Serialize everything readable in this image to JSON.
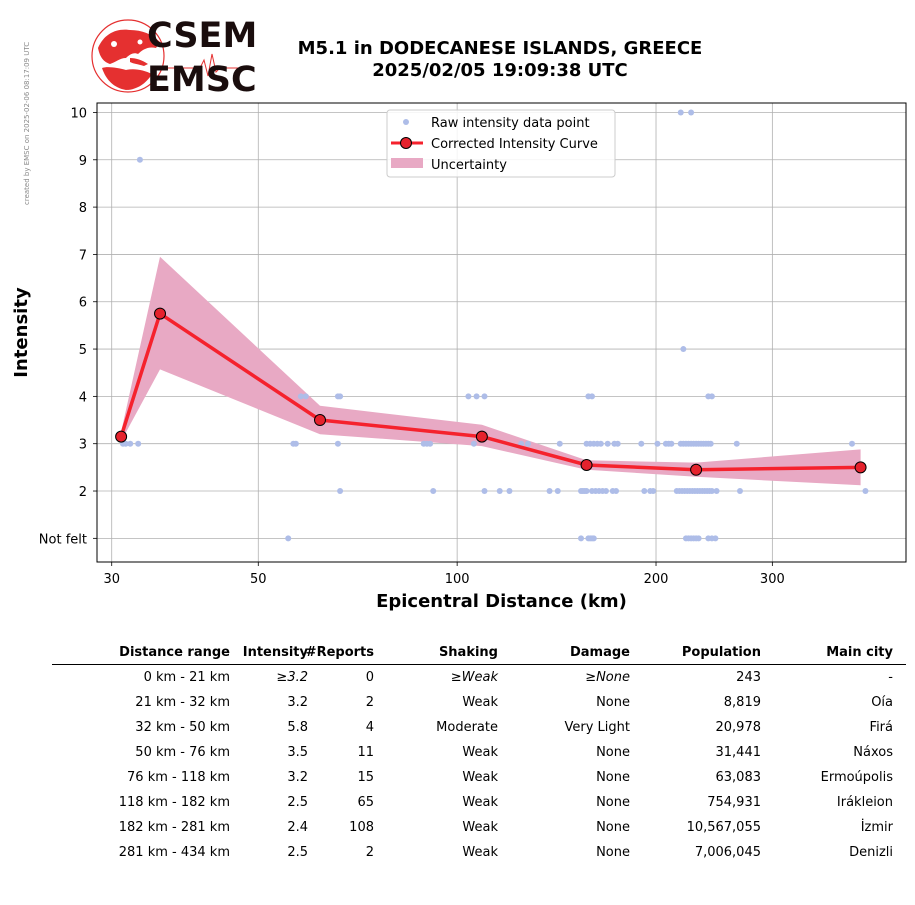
{
  "credit": "created by EMSC on 2025-02-06 08:17:09 UTC",
  "logo": {
    "top_word": "CSEM",
    "bottom_word": "EMSC"
  },
  "title": {
    "line1": "M5.1 in DODECANESE ISLANDS, GREECE",
    "line2": "2025/02/05 19:09:38 UTC"
  },
  "chart_data": {
    "type": "scatter",
    "xlabel": "Epicentral Distance (km)",
    "ylabel": "Intensity",
    "x_scale": "log",
    "xlim": [
      28.5,
      478
    ],
    "ylim": [
      0.5,
      10.2
    ],
    "x_ticks": [
      30,
      50,
      100,
      200,
      300
    ],
    "y_ticks": [
      1,
      2,
      3,
      4,
      5,
      6,
      7,
      8,
      9,
      10
    ],
    "y_tick_labels": [
      "Not felt",
      "2",
      "3",
      "4",
      "5",
      "6",
      "7",
      "8",
      "9",
      "10"
    ],
    "grid": true,
    "legend_position": "top-center",
    "colors": {
      "raw": "#aebde8",
      "curve": "#f5222d",
      "marker": "#e5222d",
      "uncertainty": "#e8a9c4"
    },
    "series": [
      {
        "name": "Raw intensity data point",
        "kind": "points",
        "points": [
          [
            31.2,
            3
          ],
          [
            31.5,
            3
          ],
          [
            32.0,
            3
          ],
          [
            32.9,
            3
          ],
          [
            33.1,
            9
          ],
          [
            56.5,
            3
          ],
          [
            57.0,
            3
          ],
          [
            58.0,
            4
          ],
          [
            59.0,
            4
          ],
          [
            66.0,
            4
          ],
          [
            66.5,
            4
          ],
          [
            66.0,
            3
          ],
          [
            66.5,
            2
          ],
          [
            89,
            3
          ],
          [
            90,
            3
          ],
          [
            91,
            3
          ],
          [
            92,
            2
          ],
          [
            104,
            4
          ],
          [
            107,
            4
          ],
          [
            110,
            4
          ],
          [
            106,
            3
          ],
          [
            110,
            2
          ],
          [
            116,
            2
          ],
          [
            120,
            2
          ],
          [
            125,
            3
          ],
          [
            128,
            3
          ],
          [
            138,
            2
          ],
          [
            142,
            2
          ],
          [
            143,
            3
          ],
          [
            154,
            2
          ],
          [
            155,
            2
          ],
          [
            156,
            2
          ],
          [
            157,
            3
          ],
          [
            157,
            2
          ],
          [
            158,
            4
          ],
          [
            159,
            3
          ],
          [
            160,
            2
          ],
          [
            160,
            4
          ],
          [
            161,
            3
          ],
          [
            162,
            2
          ],
          [
            163,
            3
          ],
          [
            164,
            2
          ],
          [
            165,
            3
          ],
          [
            166,
            2
          ],
          [
            168,
            2
          ],
          [
            169,
            3
          ],
          [
            172,
            2
          ],
          [
            173,
            3
          ],
          [
            174,
            2
          ],
          [
            175,
            3
          ],
          [
            154,
            1
          ],
          [
            158,
            1
          ],
          [
            159,
            1
          ],
          [
            160,
            1
          ],
          [
            161,
            1
          ],
          [
            55.5,
            1
          ],
          [
            190,
            3
          ],
          [
            192,
            2
          ],
          [
            196,
            2
          ],
          [
            198,
            2
          ],
          [
            201,
            3
          ],
          [
            207,
            3
          ],
          [
            209,
            3
          ],
          [
            211,
            3
          ],
          [
            215,
            2
          ],
          [
            217,
            2
          ],
          [
            218,
            3
          ],
          [
            219,
            2
          ],
          [
            220,
            3
          ],
          [
            221,
            2
          ],
          [
            222,
            3
          ],
          [
            223,
            2
          ],
          [
            224,
            3
          ],
          [
            225,
            2
          ],
          [
            226,
            3
          ],
          [
            227,
            2
          ],
          [
            228,
            3
          ],
          [
            229,
            2
          ],
          [
            230,
            3
          ],
          [
            231,
            2
          ],
          [
            232,
            3
          ],
          [
            233,
            2
          ],
          [
            234,
            3
          ],
          [
            235,
            2
          ],
          [
            236,
            3
          ],
          [
            237,
            2
          ],
          [
            238,
            3
          ],
          [
            239,
            2
          ],
          [
            240,
            3
          ],
          [
            241,
            2
          ],
          [
            242,
            3
          ],
          [
            243,
            2
          ],
          [
            240,
            4
          ],
          [
            243,
            4
          ],
          [
            220,
            5
          ],
          [
            218,
            10
          ],
          [
            226,
            10
          ],
          [
            222,
            1
          ],
          [
            224,
            1
          ],
          [
            226,
            1
          ],
          [
            228,
            1
          ],
          [
            230,
            1
          ],
          [
            232,
            1
          ],
          [
            240,
            1
          ],
          [
            243,
            1
          ],
          [
            246,
            1
          ],
          [
            247,
            2
          ],
          [
            265,
            3
          ],
          [
            268,
            2
          ],
          [
            396,
            3
          ],
          [
            415,
            2
          ]
        ]
      },
      {
        "name": "Corrected Intensity Curve",
        "kind": "line",
        "points": [
          [
            31.0,
            3.15
          ],
          [
            35.5,
            5.75
          ],
          [
            62,
            3.5
          ],
          [
            109,
            3.15
          ],
          [
            157,
            2.55
          ],
          [
            230,
            2.45
          ],
          [
            408,
            2.5
          ]
        ]
      },
      {
        "name": "Uncertainty",
        "kind": "band",
        "upper": [
          [
            31.0,
            3.25
          ],
          [
            35.5,
            6.95
          ],
          [
            62,
            3.8
          ],
          [
            109,
            3.4
          ],
          [
            157,
            2.65
          ],
          [
            230,
            2.6
          ],
          [
            408,
            2.88
          ]
        ],
        "lower": [
          [
            31.0,
            3.05
          ],
          [
            35.5,
            4.57
          ],
          [
            62,
            3.2
          ],
          [
            109,
            2.95
          ],
          [
            157,
            2.45
          ],
          [
            230,
            2.3
          ],
          [
            408,
            2.12
          ]
        ]
      }
    ],
    "legend": [
      {
        "label": "Raw intensity data point",
        "series": 0
      },
      {
        "label": "Corrected Intensity Curve",
        "series": 1
      },
      {
        "label": "Uncertainty",
        "series": 2
      }
    ]
  },
  "table": {
    "headers": [
      "Distance range",
      "Intensity",
      "#Reports",
      "Shaking",
      "Damage",
      "Population",
      "Main city"
    ],
    "rows": [
      {
        "distance": "0 km -   21 km",
        "intensity": "≥3.2",
        "reports": "0",
        "shaking": "≥Weak",
        "damage": "≥None",
        "population": "243",
        "city": "-",
        "italic": true
      },
      {
        "distance": "21 km -   32 km",
        "intensity": "3.2",
        "reports": "2",
        "shaking": "Weak",
        "damage": "None",
        "population": "8,819",
        "city": "Oía"
      },
      {
        "distance": "32 km -   50 km",
        "intensity": "5.8",
        "reports": "4",
        "shaking": "Moderate",
        "damage": "Very Light",
        "population": "20,978",
        "city": "Firá"
      },
      {
        "distance": "50 km -   76 km",
        "intensity": "3.5",
        "reports": "11",
        "shaking": "Weak",
        "damage": "None",
        "population": "31,441",
        "city": "Náxos"
      },
      {
        "distance": "76 km -  118 km",
        "intensity": "3.2",
        "reports": "15",
        "shaking": "Weak",
        "damage": "None",
        "population": "63,083",
        "city": "Ermoúpolis"
      },
      {
        "distance": "118 km -  182 km",
        "intensity": "2.5",
        "reports": "65",
        "shaking": "Weak",
        "damage": "None",
        "population": "754,931",
        "city": "Irákleion"
      },
      {
        "distance": "182 km -  281 km",
        "intensity": "2.4",
        "reports": "108",
        "shaking": "Weak",
        "damage": "None",
        "population": "10,567,055",
        "city": "İzmir"
      },
      {
        "distance": "281 km -  434 km",
        "intensity": "2.5",
        "reports": "2",
        "shaking": "Weak",
        "damage": "None",
        "population": "7,006,045",
        "city": "Denizli"
      }
    ]
  }
}
